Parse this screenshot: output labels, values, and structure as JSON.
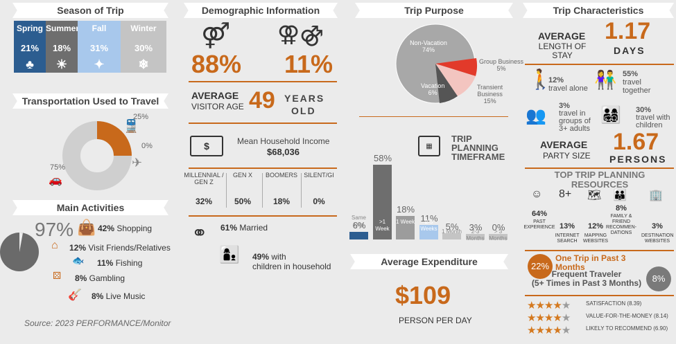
{
  "season": {
    "title": "Season of Trip",
    "items": [
      {
        "name": "Spring",
        "pct": "21%",
        "icon": "sprout-icon",
        "glyph": "♣",
        "color": "#2c5d90"
      },
      {
        "name": "Summer",
        "pct": "18%",
        "icon": "sun-icon",
        "glyph": "☀",
        "color": "#6e6e6e"
      },
      {
        "name": "Fall",
        "pct": "31%",
        "icon": "leaf-icon",
        "glyph": "✦",
        "color": "#a8c8ec"
      },
      {
        "name": "Winter",
        "pct": "30%",
        "icon": "snowflake-icon",
        "glyph": "❄",
        "color": "#c4c4c4"
      }
    ]
  },
  "transport": {
    "title": "Transportation Used to Travel",
    "train": "25%",
    "plane": "0%",
    "car": "75%"
  },
  "activities": {
    "title": "Main Activities",
    "big": "97%",
    "items": [
      {
        "pct": "42%",
        "label": "Shopping"
      },
      {
        "pct": "12%",
        "label": "Visit Friends/Relatives"
      },
      {
        "pct": "11%",
        "label": "Fishing"
      },
      {
        "pct": "8%",
        "label": "Gambling"
      },
      {
        "pct": "8%",
        "label": "Live Music"
      }
    ]
  },
  "source": "Source: 2023 PERFORMANCE/Monitor",
  "demo": {
    "title": "Demographic Information",
    "pct1": "88%",
    "pct2": "11%",
    "avg_label1": "AVERAGE",
    "avg_label2": "VISITOR AGE",
    "age": "49",
    "years": "YEARS",
    "old": "OLD",
    "income_label": "Mean Household Income",
    "income": "$68,036",
    "generations": [
      {
        "label": "MILLENNIAL / GEN Z",
        "pct": "32%"
      },
      {
        "label": "GEN X",
        "pct": "50%"
      },
      {
        "label": "BOOMERS",
        "pct": "18%"
      },
      {
        "label": "SILENT/GI",
        "pct": "0%"
      }
    ],
    "married_pct": "61%",
    "married": "Married",
    "children_pct": "49%",
    "children": "with",
    "children2": "children in household"
  },
  "purpose": {
    "title": "Trip Purpose",
    "nonvac": "Non-Vacation",
    "nonvac_pct": "74%",
    "group": "Group Business",
    "group_pct": "5%",
    "vac": "Vacation",
    "vac_pct": "6%",
    "transient": "Transient",
    "transient2": "Business",
    "transient_pct": "15%"
  },
  "planning": {
    "title1": "TRIP",
    "title2": "PLANNING",
    "title3": "TIMEFRAME"
  },
  "chart_data": {
    "type": "bar",
    "categories": [
      "Same Day",
      "> 1 Week",
      "1 Week",
      "2-3 Weeks",
      "1 Month",
      "2-3 Months",
      "> 3 Months"
    ],
    "values": [
      6,
      58,
      18,
      11,
      5,
      3,
      0
    ],
    "colors": [
      "#2c5d90",
      "#6e6e6e",
      "#9c9c9c",
      "#a8c8ec",
      "#c4c4c4",
      "#c4c4c4",
      "#c4c4c4"
    ],
    "labels": [
      "6%",
      "58%",
      "18%",
      "11%",
      "5%",
      "3%",
      "0%"
    ],
    "sub": [
      "Same Day",
      ">1 Week",
      "1 Week",
      "2-3 Weeks",
      "1 Month",
      "2-3 Months",
      "> 3 Months"
    ]
  },
  "expenditure": {
    "title": "Average Expenditure",
    "value": "$109",
    "label": "PERSON PER DAY"
  },
  "chars": {
    "title": "Trip Characteristics",
    "avg1": "AVERAGE",
    "stay1": "LENGTH OF",
    "stay2": "STAY",
    "days_val": "1.17",
    "days": "DAYS",
    "alone_pct": "12%",
    "alone": "travel alone",
    "together_pct": "55%",
    "together1": "travel",
    "together2": "together",
    "groups_pct": "3%",
    "groups1": "travel in",
    "groups2": "groups of",
    "groups3": "3+ adults",
    "kids_pct": "30%",
    "kids1": "travel with",
    "kids2": "children",
    "avg2": "AVERAGE",
    "party": "PARTY SIZE",
    "persons_val": "1.67",
    "persons": "PERSONS"
  },
  "resources": {
    "title1": "TOP TRIP PLANNING",
    "title2": "RESOURCES",
    "items": [
      {
        "pct": "64%",
        "l1": "PAST",
        "l2": "EXPERIENCE",
        "icon": "smiley-icon"
      },
      {
        "pct": "13%",
        "l1": "INTERNET",
        "l2": "SEARCH",
        "icon": "google-icon"
      },
      {
        "pct": "12%",
        "l1": "MAPPING",
        "l2": "WEBSITES",
        "icon": "map-icon"
      },
      {
        "pct": "8%",
        "l1": "FAMILY &",
        "l2": "FRIEND",
        "l3": "RECOMMEN-",
        "l4": "DATIONS",
        "icon": "people-icon"
      },
      {
        "pct": "3%",
        "l1": "DESTINATION",
        "l2": "WEBSITES",
        "icon": "building-icon"
      }
    ]
  },
  "frequency": {
    "one_pct": "22%",
    "one1": "One Trip in Past 3",
    "one2": "Months",
    "freq1": "Frequent Traveler",
    "freq2": "(5+ Times in Past 3 Months)",
    "freq_pct": "8%"
  },
  "ratings": [
    {
      "label": "SATISFACTION (8.39)",
      "stars": 4
    },
    {
      "label": "VALUE-FOR-THE-MONEY",
      "label2": "(8.14)",
      "stars": 4
    },
    {
      "label": "LIKELY TO RECOMMEND",
      "label2": "(6.90)",
      "stars": 4
    }
  ]
}
